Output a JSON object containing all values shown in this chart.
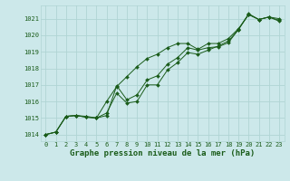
{
  "background_color": "#cce8ea",
  "grid_color": "#b0d4d4",
  "line_color": "#1a5c1a",
  "marker_color": "#1a5c1a",
  "xlabel": "Graphe pression niveau de la mer (hPa)",
  "xlabel_fontsize": 6.5,
  "ylim": [
    1013.6,
    1021.8
  ],
  "xlim": [
    -0.5,
    23.5
  ],
  "yticks": [
    1014,
    1015,
    1016,
    1017,
    1018,
    1019,
    1020,
    1021
  ],
  "xticks": [
    0,
    1,
    2,
    3,
    4,
    5,
    6,
    7,
    8,
    9,
    10,
    11,
    12,
    13,
    14,
    15,
    16,
    17,
    18,
    19,
    20,
    21,
    22,
    23
  ],
  "series1": [
    1014.0,
    1014.15,
    1015.1,
    1015.15,
    1015.1,
    1015.0,
    1016.0,
    1016.9,
    1017.5,
    1018.1,
    1018.6,
    1018.85,
    1019.25,
    1019.5,
    1019.5,
    1019.15,
    1019.5,
    1019.5,
    1019.8,
    1020.4,
    1021.25,
    1020.95,
    1021.1,
    1021.0
  ],
  "series2": [
    1014.0,
    1014.15,
    1015.1,
    1015.15,
    1015.05,
    1015.0,
    1015.15,
    1016.95,
    1016.1,
    1016.4,
    1017.3,
    1017.55,
    1018.25,
    1018.65,
    1019.25,
    1019.1,
    1019.25,
    1019.3,
    1019.55,
    1020.35,
    1021.25,
    1020.95,
    1021.1,
    1020.9
  ],
  "series3": [
    1014.0,
    1014.15,
    1015.1,
    1015.15,
    1015.05,
    1015.0,
    1015.3,
    1016.5,
    1015.9,
    1016.0,
    1017.0,
    1017.0,
    1017.9,
    1018.35,
    1018.95,
    1018.85,
    1019.1,
    1019.35,
    1019.65,
    1020.35,
    1021.3,
    1020.95,
    1021.1,
    1020.85
  ]
}
